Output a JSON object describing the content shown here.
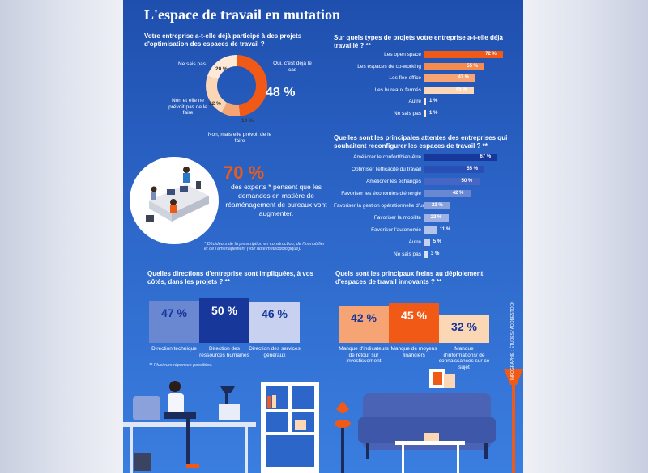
{
  "title": "L'espace de travail en mutation",
  "colors": {
    "orange": "#f05a16",
    "orange_light": "#f7a474",
    "peach": "#fcd7b6",
    "navy": "#17379a",
    "blue_mid": "#6a87d2",
    "blue_light": "#c8d2f0"
  },
  "donut": {
    "question": "Votre entreprise a-t-elle déjà participé à des projets d'optimisation des espaces de travail ?",
    "segments": [
      {
        "label": "Oui, c'est déjà le cas",
        "value": 48,
        "display": "48 %",
        "color": "#f05a16"
      },
      {
        "label": "Non, mais elle prévoit de le faire",
        "value": 10,
        "display": "10 %",
        "color": "#f7a474"
      },
      {
        "label": "Non et elle ne prévoit pas de le faire",
        "value": 22,
        "display": "22 %",
        "color": "#fcd7b6"
      },
      {
        "label": "Ne sais pas",
        "value": 20,
        "display": "20 %",
        "color": "#fde9d6"
      }
    ]
  },
  "projects": {
    "question": "Sur quels types de projets votre entreprise a-t-elle déjà travaillé ? **",
    "items": [
      {
        "label": "Les open space",
        "value": 72,
        "display": "72 %",
        "color": "#f05a16"
      },
      {
        "label": "Les espaces de co-working",
        "value": 55,
        "display": "55 %",
        "color": "#f58b4f"
      },
      {
        "label": "Les flex office",
        "value": 47,
        "display": "47 %",
        "color": "#f7a474"
      },
      {
        "label": "Les bureaux fermés",
        "value": 45,
        "display": "45 %",
        "color": "#fcd7b6"
      },
      {
        "label": "Autre",
        "value": 1,
        "display": "1 %",
        "color": "#fde9d6"
      },
      {
        "label": "Ne sais pas",
        "value": 1,
        "display": "1 %",
        "color": "#fde9d6"
      }
    ]
  },
  "expectations": {
    "question": "Quelles sont les principales attentes des entreprises qui souhaitent reconfigurer les espaces de travail ? **",
    "items": [
      {
        "label": "Améliorer le confort/bien-être",
        "value": 67,
        "display": "67 %",
        "color": "#17379a"
      },
      {
        "label": "Optimiser l'efficacité du travail",
        "value": 55,
        "display": "55 %",
        "color": "#2a4fb4"
      },
      {
        "label": "Améliorer les échanges",
        "value": 50,
        "display": "50 %",
        "color": "#4566c4"
      },
      {
        "label": "Favoriser les économies d'énergie",
        "value": 42,
        "display": "42 %",
        "color": "#6a87d2"
      },
      {
        "label": "Favoriser la gestion opérationnelle d'un bâtiment",
        "value": 23,
        "display": "23 %",
        "color": "#8aa1dc"
      },
      {
        "label": "Favoriser la mobilité",
        "value": 22,
        "display": "22 %",
        "color": "#9fb2e3"
      },
      {
        "label": "Favoriser l'autonomie",
        "value": 11,
        "display": "11 %",
        "color": "#b4c3ea"
      },
      {
        "label": "Autre",
        "value": 5,
        "display": "5 %",
        "color": "#c8d2f0"
      },
      {
        "label": "Ne sais pas",
        "value": 3,
        "display": "3 %",
        "color": "#d8e0f5"
      }
    ]
  },
  "experts": {
    "big": "70 %",
    "text": "des experts * pensent que les demandes en matière de réaménagement de bureaux vont augmenter.",
    "note": "* Décideurs de la prescription en construction, de l'immobilier et de l'aménagement (voir note méthodologique)."
  },
  "directions": {
    "question": "Quelles directions d'entreprise sont impliquées, à vos côtés, dans les projets ? **",
    "items": [
      {
        "label": "Direction technique",
        "value": 47,
        "display": "47 %",
        "color": "#6a87d2"
      },
      {
        "label": "Direction des ressources humaines",
        "value": 50,
        "display": "50 %",
        "color": "#17379a"
      },
      {
        "label": "Direction des services généraux",
        "value": 46,
        "display": "46 %",
        "color": "#c8d2f0"
      }
    ]
  },
  "brakes": {
    "question": "Quels sont les principaux freins au déploiement d'espaces de travail innovants ? **",
    "items": [
      {
        "label": "Manque d'indicateurs de retour sur investissement",
        "value": 42,
        "display": "42 %",
        "color": "#f7a474"
      },
      {
        "label": "Manque de moyens financiers",
        "value": 45,
        "display": "45 %",
        "color": "#f05a16"
      },
      {
        "label": "Manque d'informations/ de connaissances sur ce sujet",
        "value": 32,
        "display": "32 %",
        "color": "#fcd7b6"
      }
    ]
  },
  "footnote": "** Plusieurs réponses possibles.",
  "credit": "INFOGRAPHIE : ÉTUDES / ADOBESTOCK"
}
